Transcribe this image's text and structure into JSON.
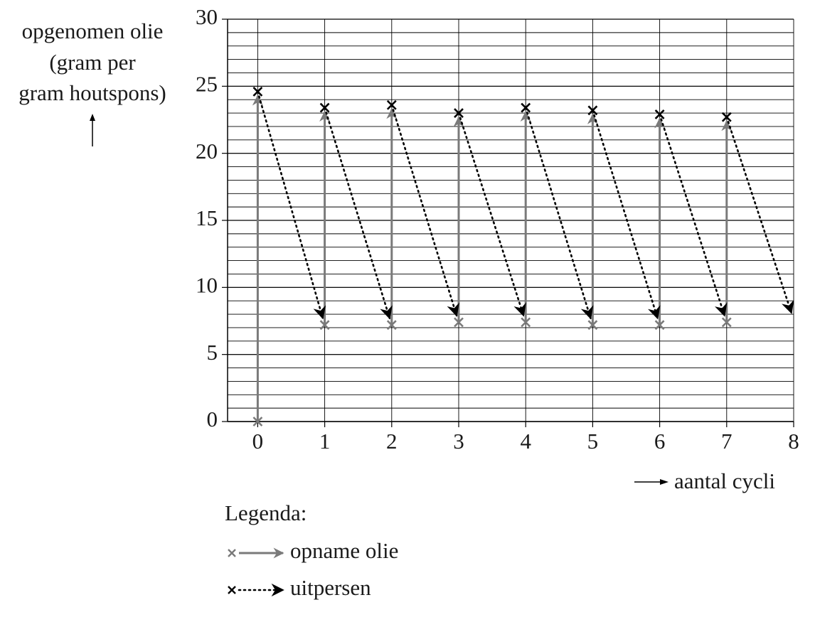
{
  "chart_data": {
    "type": "cycle-arrows",
    "ylabel": [
      "opgenomen olie",
      "(gram per",
      "gram houtspons)"
    ],
    "xlabel": "aantal cycli",
    "legend_title": "Legenda:",
    "xlim": [
      -0.45,
      8
    ],
    "xticks": [
      0,
      1,
      2,
      3,
      4,
      5,
      6,
      7,
      8
    ],
    "ylim": [
      0,
      30
    ],
    "yticks": [
      0,
      5,
      10,
      15,
      20,
      25,
      30
    ],
    "ygrid_step": 1,
    "grid": true,
    "series": [
      {
        "name": "opname olie",
        "color": "#7a7a7a",
        "line": "solid",
        "x": [
          0,
          1,
          2,
          3,
          4,
          5,
          6,
          7,
          8
        ],
        "values": [
          0,
          7.2,
          7.2,
          7.4,
          7.4,
          7.2,
          7.2,
          7.4,
          7.6
        ]
      },
      {
        "name": "uitpersen",
        "color": "#000000",
        "line": "dotted",
        "x": [
          0,
          1,
          2,
          3,
          4,
          5,
          6,
          7,
          8
        ],
        "values": [
          24.6,
          23.4,
          23.6,
          23.0,
          23.4,
          23.2,
          22.9,
          22.7,
          null
        ]
      }
    ]
  }
}
